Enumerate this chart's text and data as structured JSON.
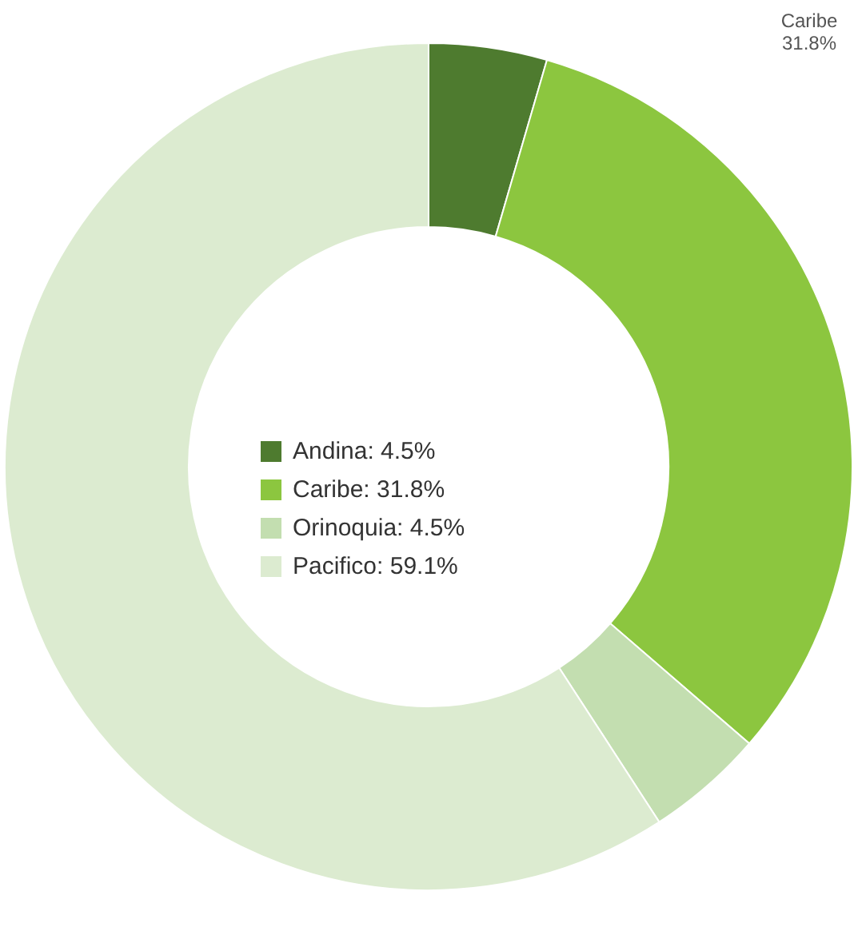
{
  "chart_data": {
    "type": "donut",
    "categories": [
      "Andina: 4.5%",
      "Caribe: 31.8%",
      "Orinoquia: 4.5%",
      "Pacifico: 59.1%"
    ],
    "values": [
      4.5,
      31.8,
      4.5,
      59.1
    ],
    "colors": [
      "#4e7b2f",
      "#8cc63f",
      "#c3deb0",
      "#dcebd0"
    ],
    "annotations": [
      "Caribe\n31.8%"
    ],
    "legend": "center"
  }
}
